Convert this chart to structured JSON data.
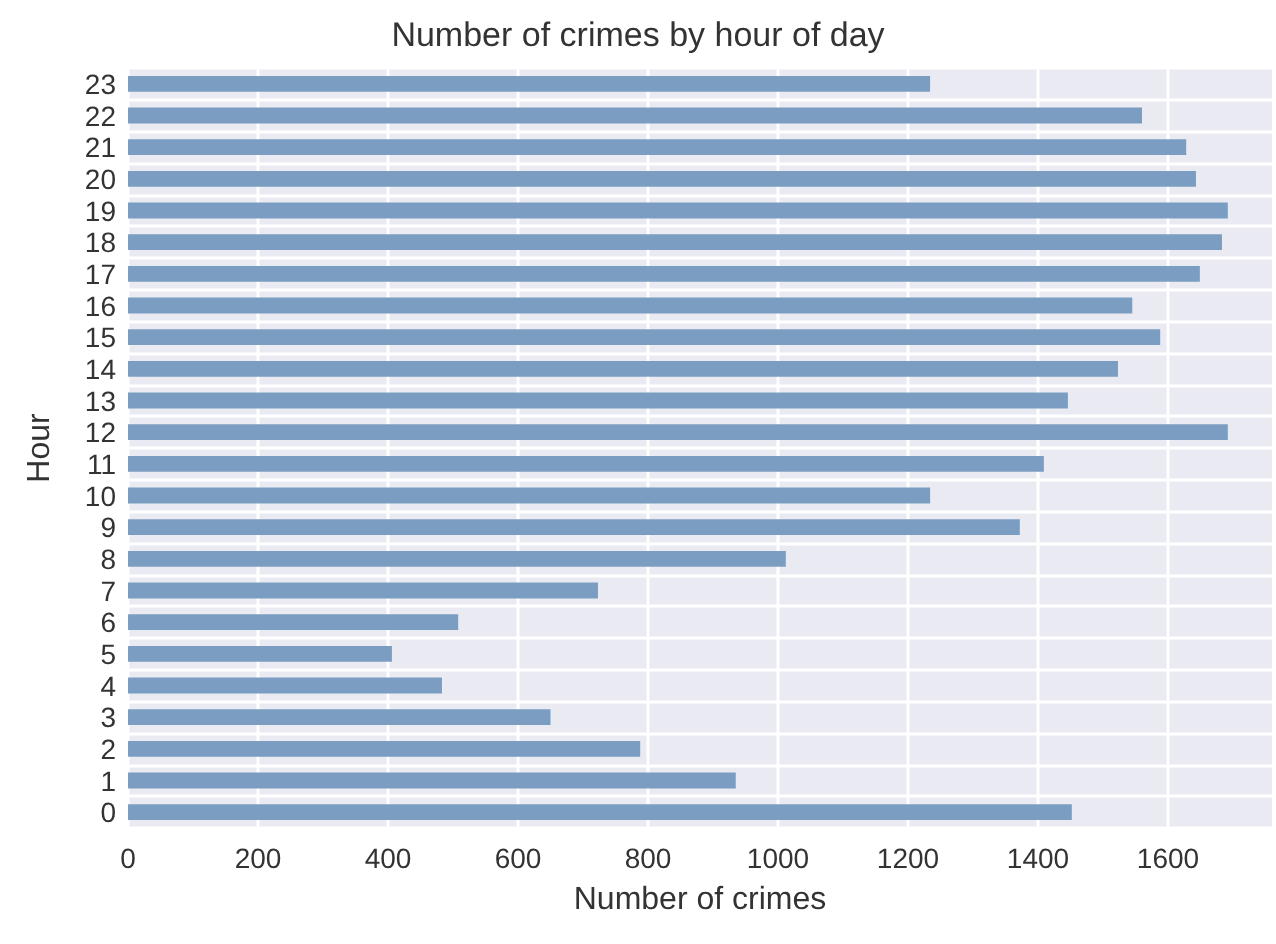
{
  "chart_data": {
    "type": "bar",
    "orientation": "horizontal",
    "title": "Number of crimes by hour of day",
    "xlabel": "Number of crimes",
    "ylabel": "Hour",
    "categories": [
      "23",
      "22",
      "21",
      "20",
      "19",
      "18",
      "17",
      "16",
      "15",
      "14",
      "13",
      "12",
      "11",
      "10",
      "9",
      "8",
      "7",
      "6",
      "5",
      "4",
      "3",
      "2",
      "1",
      "0"
    ],
    "values": [
      1234,
      1560,
      1628,
      1643,
      1692,
      1683,
      1649,
      1545,
      1588,
      1523,
      1446,
      1692,
      1409,
      1234,
      1372,
      1012,
      723,
      508,
      406,
      483,
      650,
      788,
      935,
      1452
    ],
    "color": "#7b9dc2",
    "xlim": [
      0,
      1760
    ],
    "xticks": [
      0,
      200,
      400,
      600,
      800,
      1000,
      1200,
      1400,
      1600
    ],
    "grid": true
  }
}
